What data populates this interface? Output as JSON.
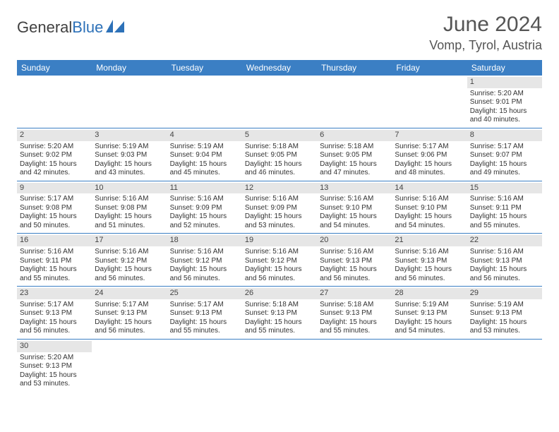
{
  "brand": {
    "part1": "General",
    "part2": "Blue"
  },
  "title": "June 2024",
  "location": "Vomp, Tyrol, Austria",
  "colors": {
    "header_bg": "#3b7fc4",
    "header_text": "#ffffff",
    "daynum_bg": "#e6e6e6",
    "row_border": "#3b7fc4",
    "text": "#333333"
  },
  "dayHeaders": [
    "Sunday",
    "Monday",
    "Tuesday",
    "Wednesday",
    "Thursday",
    "Friday",
    "Saturday"
  ],
  "weeks": [
    [
      {
        "empty": true
      },
      {
        "empty": true
      },
      {
        "empty": true
      },
      {
        "empty": true
      },
      {
        "empty": true
      },
      {
        "empty": true
      },
      {
        "day": "1",
        "sunrise": "5:20 AM",
        "sunset": "9:01 PM",
        "daylight": "15 hours and 40 minutes."
      }
    ],
    [
      {
        "day": "2",
        "sunrise": "5:20 AM",
        "sunset": "9:02 PM",
        "daylight": "15 hours and 42 minutes."
      },
      {
        "day": "3",
        "sunrise": "5:19 AM",
        "sunset": "9:03 PM",
        "daylight": "15 hours and 43 minutes."
      },
      {
        "day": "4",
        "sunrise": "5:19 AM",
        "sunset": "9:04 PM",
        "daylight": "15 hours and 45 minutes."
      },
      {
        "day": "5",
        "sunrise": "5:18 AM",
        "sunset": "9:05 PM",
        "daylight": "15 hours and 46 minutes."
      },
      {
        "day": "6",
        "sunrise": "5:18 AM",
        "sunset": "9:05 PM",
        "daylight": "15 hours and 47 minutes."
      },
      {
        "day": "7",
        "sunrise": "5:17 AM",
        "sunset": "9:06 PM",
        "daylight": "15 hours and 48 minutes."
      },
      {
        "day": "8",
        "sunrise": "5:17 AM",
        "sunset": "9:07 PM",
        "daylight": "15 hours and 49 minutes."
      }
    ],
    [
      {
        "day": "9",
        "sunrise": "5:17 AM",
        "sunset": "9:08 PM",
        "daylight": "15 hours and 50 minutes."
      },
      {
        "day": "10",
        "sunrise": "5:16 AM",
        "sunset": "9:08 PM",
        "daylight": "15 hours and 51 minutes."
      },
      {
        "day": "11",
        "sunrise": "5:16 AM",
        "sunset": "9:09 PM",
        "daylight": "15 hours and 52 minutes."
      },
      {
        "day": "12",
        "sunrise": "5:16 AM",
        "sunset": "9:09 PM",
        "daylight": "15 hours and 53 minutes."
      },
      {
        "day": "13",
        "sunrise": "5:16 AM",
        "sunset": "9:10 PM",
        "daylight": "15 hours and 54 minutes."
      },
      {
        "day": "14",
        "sunrise": "5:16 AM",
        "sunset": "9:10 PM",
        "daylight": "15 hours and 54 minutes."
      },
      {
        "day": "15",
        "sunrise": "5:16 AM",
        "sunset": "9:11 PM",
        "daylight": "15 hours and 55 minutes."
      }
    ],
    [
      {
        "day": "16",
        "sunrise": "5:16 AM",
        "sunset": "9:11 PM",
        "daylight": "15 hours and 55 minutes."
      },
      {
        "day": "17",
        "sunrise": "5:16 AM",
        "sunset": "9:12 PM",
        "daylight": "15 hours and 56 minutes."
      },
      {
        "day": "18",
        "sunrise": "5:16 AM",
        "sunset": "9:12 PM",
        "daylight": "15 hours and 56 minutes."
      },
      {
        "day": "19",
        "sunrise": "5:16 AM",
        "sunset": "9:12 PM",
        "daylight": "15 hours and 56 minutes."
      },
      {
        "day": "20",
        "sunrise": "5:16 AM",
        "sunset": "9:13 PM",
        "daylight": "15 hours and 56 minutes."
      },
      {
        "day": "21",
        "sunrise": "5:16 AM",
        "sunset": "9:13 PM",
        "daylight": "15 hours and 56 minutes."
      },
      {
        "day": "22",
        "sunrise": "5:16 AM",
        "sunset": "9:13 PM",
        "daylight": "15 hours and 56 minutes."
      }
    ],
    [
      {
        "day": "23",
        "sunrise": "5:17 AM",
        "sunset": "9:13 PM",
        "daylight": "15 hours and 56 minutes."
      },
      {
        "day": "24",
        "sunrise": "5:17 AM",
        "sunset": "9:13 PM",
        "daylight": "15 hours and 56 minutes."
      },
      {
        "day": "25",
        "sunrise": "5:17 AM",
        "sunset": "9:13 PM",
        "daylight": "15 hours and 55 minutes."
      },
      {
        "day": "26",
        "sunrise": "5:18 AM",
        "sunset": "9:13 PM",
        "daylight": "15 hours and 55 minutes."
      },
      {
        "day": "27",
        "sunrise": "5:18 AM",
        "sunset": "9:13 PM",
        "daylight": "15 hours and 55 minutes."
      },
      {
        "day": "28",
        "sunrise": "5:19 AM",
        "sunset": "9:13 PM",
        "daylight": "15 hours and 54 minutes."
      },
      {
        "day": "29",
        "sunrise": "5:19 AM",
        "sunset": "9:13 PM",
        "daylight": "15 hours and 53 minutes."
      }
    ],
    [
      {
        "day": "30",
        "sunrise": "5:20 AM",
        "sunset": "9:13 PM",
        "daylight": "15 hours and 53 minutes."
      },
      {
        "empty": true
      },
      {
        "empty": true
      },
      {
        "empty": true
      },
      {
        "empty": true
      },
      {
        "empty": true
      },
      {
        "empty": true
      }
    ]
  ],
  "labels": {
    "sunrise": "Sunrise:",
    "sunset": "Sunset:",
    "daylight": "Daylight:"
  }
}
